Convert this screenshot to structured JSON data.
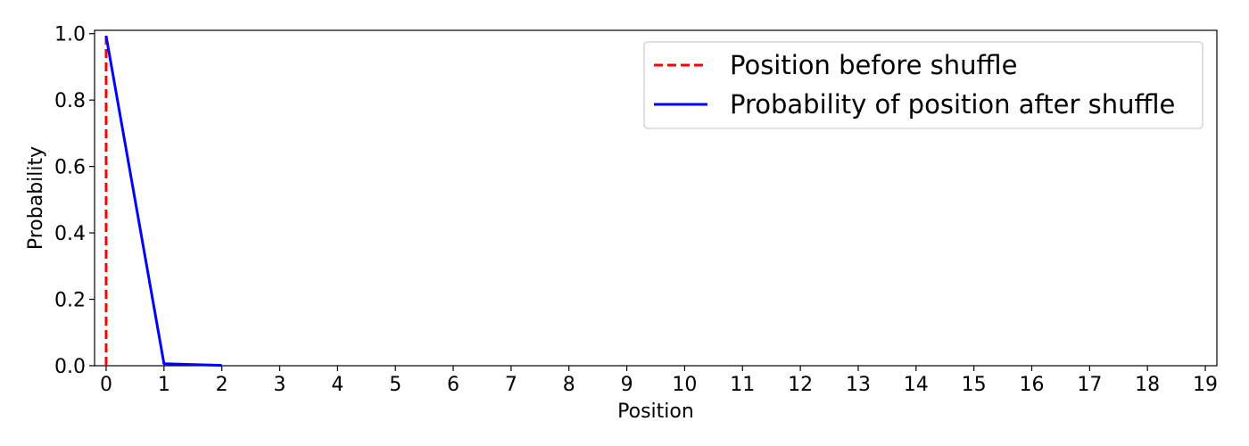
{
  "chart_data": {
    "type": "line",
    "xlabel": "Position",
    "ylabel": "Probability",
    "xlim": [
      -0.2,
      19.2
    ],
    "ylim": [
      0,
      1.01
    ],
    "x_ticks": [
      0,
      1,
      2,
      3,
      4,
      5,
      6,
      7,
      8,
      9,
      10,
      11,
      12,
      13,
      14,
      15,
      16,
      17,
      18,
      19
    ],
    "y_ticks": [
      0.0,
      0.2,
      0.4,
      0.6,
      0.8,
      1.0
    ],
    "y_tick_labels": [
      "0.0",
      "0.2",
      "0.4",
      "0.6",
      "0.8",
      "1.0"
    ],
    "grid": false,
    "legend_position": "top-right",
    "series": [
      {
        "name": "Position before shuffle",
        "style": "dashed",
        "color": "#ff0000",
        "x": [
          0,
          0
        ],
        "y": [
          0,
          1
        ]
      },
      {
        "name": "Probability of position after shuffle",
        "style": "solid",
        "color": "#0000ff",
        "x": [
          0,
          1,
          2
        ],
        "y": [
          0.993,
          0.006,
          0.001
        ]
      }
    ]
  }
}
